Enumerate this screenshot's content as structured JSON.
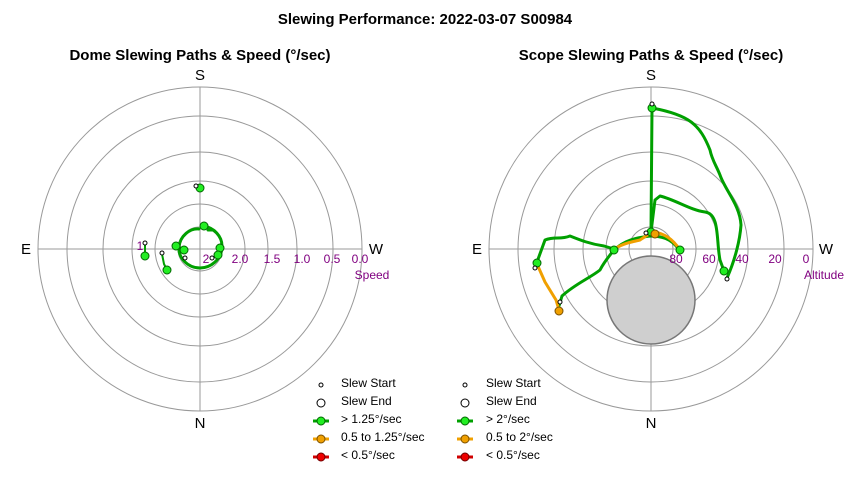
{
  "title": "Slewing Performance: 2022-03-07 S00984",
  "compass": {
    "s": "S",
    "n": "N",
    "e": "E",
    "w": "W"
  },
  "colors": {
    "high": "#00a000",
    "high_fill": "#22ee22",
    "mid": "#f0a000",
    "mid_fill": "#f0a000",
    "low": "#d00000",
    "low_fill": "#ee0000",
    "grid": "#999999",
    "tick": "#800080"
  },
  "dome": {
    "title": "Dome Slewing Paths & Speed (°/sec)",
    "radial_label": "Speed",
    "radial_ticks": [
      "2.0",
      "1.5",
      "1.0",
      "0.5",
      "0.0"
    ],
    "inner_ticks": [
      "2",
      "1"
    ],
    "legend": [
      "Slew Start",
      "Slew End",
      "> 1.25°/sec",
      "0.5 to 1.25°/sec",
      "< 0.5°/sec"
    ]
  },
  "scope": {
    "title": "Scope Slewing Paths & Speed (°/sec)",
    "radial_label": "Altitude",
    "radial_ticks": [
      "80",
      "60",
      "40",
      "20",
      "0"
    ],
    "legend": [
      "Slew Start",
      "Slew End",
      "> 2°/sec",
      "0.5 to 2°/sec",
      "< 0.5°/sec"
    ]
  },
  "chart_data": [
    {
      "type": "scatter",
      "title": "Dome Slewing Paths & Speed (°/sec)",
      "coordinate_system": "polar (azimuth °, speed °/sec; center = 2.5, outer ring = 0.0)",
      "radial_ticks": [
        2.0,
        1.5,
        1.0,
        0.5,
        0.0
      ],
      "radial_range": [
        2.5,
        0.0
      ],
      "series": [
        {
          "name": "> 1.25°/sec",
          "color": "#00a000",
          "segments": [
            {
              "points": [
                [
                  0,
                  1.55
                ]
              ]
            },
            {
              "points": [
                [
                  30,
                  2.05
                ],
                [
                  10,
                  2.1
                ],
                [
                  340,
                  2.05
                ],
                [
                  300,
                  2.05
                ],
                [
                  270,
                  2.1
                ],
                [
                  230,
                  2.1
                ],
                [
                  205,
                  2.05
                ],
                [
                  180,
                  2.0
                ],
                [
                  150,
                  2.05
                ],
                [
                  110,
                  2.05
                ],
                [
                  100,
                  2.0
                ],
                [
                  80,
                  2.1
                ],
                [
                  60,
                  2.1
                ]
              ]
            },
            {
              "points": [
                [
                  245,
                  2.05
                ],
                [
                  225,
                  2.05
                ],
                [
                  220,
                  2.0
                ]
              ]
            },
            {
              "points": [
                [
                  75,
                  1.5
                ],
                [
                  80,
                  1.6
                ],
                [
                  78,
                  1.55
                ]
              ]
            },
            {
              "points": [
                [
                  90,
                  1.4
                ],
                [
                  100,
                  1.35
                ],
                [
                  95,
                  1.4
                ]
              ]
            },
            {
              "points": [
                [
                  110,
                  1.5
                ],
                [
                  115,
                  1.6
                ],
                [
                  125,
                  1.55
                ],
                [
                  120,
                  1.6
                ]
              ]
            },
            {
              "points": [
                [
                  95,
                  1.9
                ],
                [
                  98,
                  1.95
                ]
              ]
            }
          ]
        }
      ]
    },
    {
      "type": "scatter",
      "title": "Scope Slewing Paths & Speed (°/sec)",
      "coordinate_system": "polar (azimuth °, altitude °; center = 90, outer ring = 0)",
      "radial_ticks": [
        80,
        60,
        40,
        20,
        0
      ],
      "radial_range": [
        90,
        0
      ],
      "shaded_zone": {
        "azimuth": 180,
        "altitude": 60
      },
      "series": [
        {
          "name": "> 2°/sec",
          "color": "#00a000",
          "segments": [
            {
              "points": [
                [
                  0,
                  87
                ],
                [
                  0,
                  25
                ]
              ]
            },
            {
              "points": [
                [
                  0,
                  25
                ],
                [
                  330,
                  29
                ],
                [
                  320,
                  40
                ],
                [
                  315,
                  48
                ],
                [
                  300,
                  48
                ],
                [
                  290,
                  50
                ],
                [
                  280,
                  50
                ],
                [
                  270,
                  45
                ],
                [
                  255,
                  40
                ],
                [
                  248,
                  40
                ]
              ]
            },
            {
              "points": [
                [
                  270,
                  86
                ],
                [
                  275,
                  84
                ],
                [
                  280,
                  82
                ],
                [
                  290,
                  78
                ],
                [
                  300,
                  74
                ],
                [
                  285,
                  72
                ],
                [
                  268,
                  60
                ],
                [
                  258,
                  38
                ],
                [
                  252,
                  37
                ]
              ]
            },
            {
              "points": [
                [
                  80,
                  62
                ],
                [
                  75,
                  60
                ],
                [
                  68,
                  57
                ],
                [
                  62,
                  57
                ],
                [
                  75,
                  55
                ],
                [
                  90,
                  50
                ],
                [
                  100,
                  48
                ],
                [
                  105,
                  40
                ],
                [
                  110,
                  40
                ],
                [
                  100,
                  30
                ],
                [
                  95,
                  27
                ],
                [
                  98,
                  26
                ]
              ]
            },
            {
              "points": [
                [
                  100,
                  67
                ],
                [
                  100,
                  70
                ]
              ]
            },
            {
              "points": [
                [
                  120,
                  34
                ],
                [
                  118,
                  36
                ]
              ]
            }
          ]
        },
        {
          "name": "0.5 to 2°/sec",
          "color": "#f0a000",
          "segments": [
            {
              "points": [
                [
                  270,
                  86
                ],
                [
                  250,
                  82
                ],
                [
                  230,
                  75
                ],
                [
                  200,
                  62
                ],
                [
                  180,
                  60
                ]
              ]
            },
            {
              "points": [
                [
                  95,
                  27
                ],
                [
                  100,
                  30
                ],
                [
                  112,
                  37
                ],
                [
                  117,
                  38
                ]
              ]
            }
          ]
        }
      ]
    }
  ]
}
